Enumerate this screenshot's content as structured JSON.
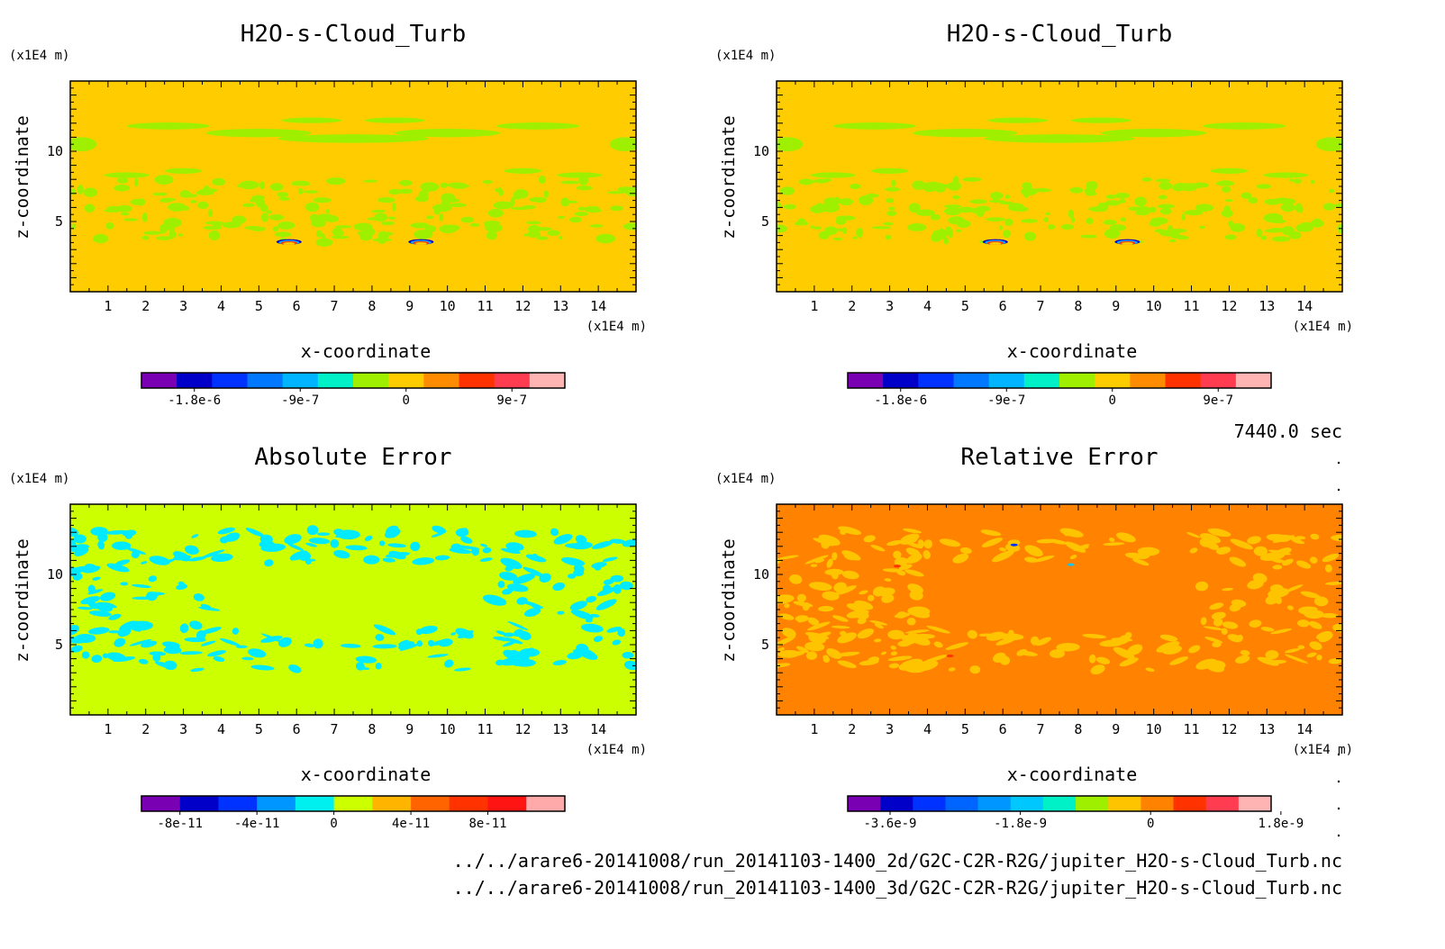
{
  "figure": {
    "time_label": "7440.0 sec",
    "files": [
      "../../arare6-20141008/run_20141103-1400_2d/G2C-C2R-R2G/jupiter_H2O-s-Cloud_Turb.nc",
      "../../arare6-20141008/run_20141103-1400_3d/G2C-C2R-R2G/jupiter_H2O-s-Cloud_Turb.nc"
    ]
  },
  "chart_data": [
    {
      "type": "heatmap",
      "title": "H2O-s-Cloud_Turb",
      "xlabel": "x-coordinate",
      "ylabel": "z-coordinate",
      "x_unit": "(x1E4 m)",
      "y_unit": "(x1E4 m)",
      "xlim": [
        0,
        15
      ],
      "ylim": [
        0,
        15
      ],
      "x_ticks": [
        1,
        2,
        3,
        4,
        5,
        6,
        7,
        8,
        9,
        10,
        11,
        12,
        13,
        14
      ],
      "y_ticks": [
        5,
        10
      ],
      "background_color": "#ffcc00",
      "pattern_color": "#9ff000",
      "pattern": "cloud-bands",
      "hotspots_x": [
        5.8,
        9.3
      ],
      "colorbar": {
        "colors": [
          "#7a00b4",
          "#0000c8",
          "#0032ff",
          "#0078ff",
          "#00b4ff",
          "#00f0c8",
          "#9ff000",
          "#ffcc00",
          "#ff8c00",
          "#ff3200",
          "#ff3c50",
          "#ffb4b4"
        ],
        "tick_labels": [
          "-1.8e-6",
          "-9e-7",
          "0",
          "9e-7"
        ],
        "tick_index": [
          1.5,
          4.5,
          7.5,
          10.5
        ]
      }
    },
    {
      "type": "heatmap",
      "title": "H2O-s-Cloud_Turb",
      "xlabel": "x-coordinate",
      "ylabel": "z-coordinate",
      "x_unit": "(x1E4 m)",
      "y_unit": "(x1E4 m)",
      "xlim": [
        0,
        15
      ],
      "ylim": [
        0,
        15
      ],
      "x_ticks": [
        1,
        2,
        3,
        4,
        5,
        6,
        7,
        8,
        9,
        10,
        11,
        12,
        13,
        14
      ],
      "y_ticks": [
        5,
        10
      ],
      "background_color": "#ffcc00",
      "pattern_color": "#9ff000",
      "pattern": "cloud-bands",
      "hotspots_x": [
        5.8,
        9.3
      ],
      "colorbar": {
        "colors": [
          "#7a00b4",
          "#0000c8",
          "#0032ff",
          "#0078ff",
          "#00b4ff",
          "#00f0c8",
          "#9ff000",
          "#ffcc00",
          "#ff8c00",
          "#ff3200",
          "#ff3c50",
          "#ffb4b4"
        ],
        "tick_labels": [
          "-1.8e-6",
          "-9e-7",
          "0",
          "9e-7"
        ],
        "tick_index": [
          1.5,
          4.5,
          7.5,
          10.5
        ]
      }
    },
    {
      "type": "heatmap",
      "title": "Absolute Error",
      "xlabel": "x-coordinate",
      "ylabel": "z-coordinate",
      "x_unit": "(x1E4 m)",
      "y_unit": "(x1E4 m)",
      "xlim": [
        0,
        15
      ],
      "ylim": [
        0,
        15
      ],
      "x_ticks": [
        1,
        2,
        3,
        4,
        5,
        6,
        7,
        8,
        9,
        10,
        11,
        12,
        13,
        14
      ],
      "y_ticks": [
        5,
        10
      ],
      "background_color": "#ccff00",
      "pattern_color": "#00eaff",
      "pattern": "error-speckle",
      "hotspots_x": [],
      "colorbar": {
        "colors": [
          "#7a00b4",
          "#0000c8",
          "#0032ff",
          "#0096ff",
          "#00f0f0",
          "#ccff00",
          "#ffb400",
          "#ff6400",
          "#ff3200",
          "#ff1414",
          "#ffaaaa"
        ],
        "tick_labels": [
          "-8e-11",
          "-4e-11",
          "0",
          "4e-11",
          "8e-11"
        ],
        "tick_index": [
          1,
          3,
          5,
          7,
          9
        ]
      }
    },
    {
      "type": "heatmap",
      "title": "Relative Error",
      "xlabel": "x-coordinate",
      "ylabel": "z-coordinate",
      "x_unit": "(x1E4 m)",
      "y_unit": "(x1E4 m)",
      "xlim": [
        0,
        15
      ],
      "ylim": [
        0,
        15
      ],
      "x_ticks": [
        1,
        2,
        3,
        4,
        5,
        6,
        7,
        8,
        9,
        10,
        11,
        12,
        13,
        14
      ],
      "y_ticks": [
        5,
        10
      ],
      "background_color": "#ff8200",
      "pattern_color": "#ffc400",
      "pattern": "error-speckle",
      "hotspots_x": [],
      "colorbar": {
        "colors": [
          "#7a00b4",
          "#0000c8",
          "#0032ff",
          "#0064ff",
          "#0096ff",
          "#00c8ff",
          "#00f0c8",
          "#9ff000",
          "#ffc400",
          "#ff8200",
          "#ff3200",
          "#ff3c50",
          "#ffb4b4"
        ],
        "tick_labels": [
          "-3.6e-9",
          "-1.8e-9",
          "0",
          "1.8e-9"
        ],
        "tick_index": [
          1.3,
          5.3,
          9.3,
          13.3
        ]
      }
    }
  ]
}
